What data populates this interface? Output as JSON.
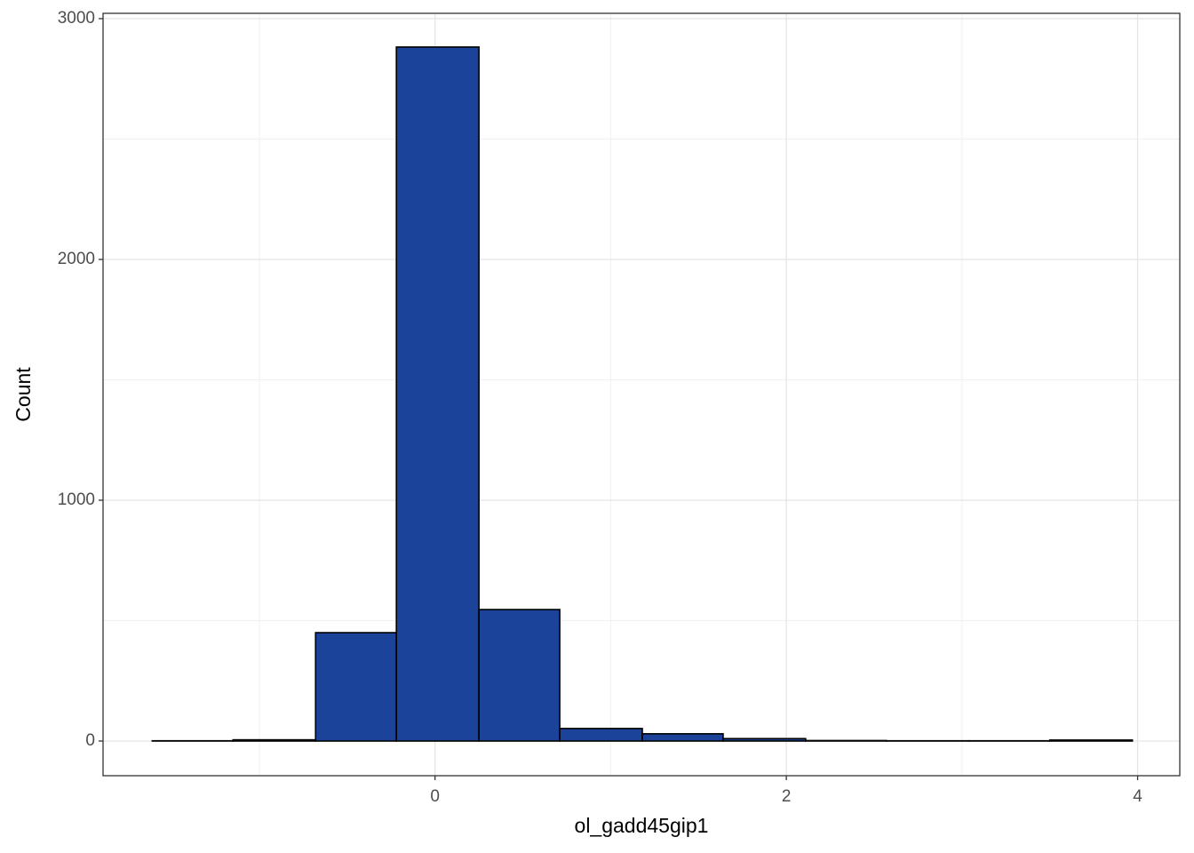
{
  "chart_data": {
    "type": "histogram",
    "x_label": "ol_gadd45gip1",
    "y_label": "Count",
    "bins": [
      -1.61,
      -1.15,
      -0.68,
      -0.22,
      0.25,
      0.71,
      1.18,
      1.64,
      2.11,
      2.57,
      3.04,
      3.5,
      3.97
    ],
    "counts": [
      1,
      5,
      450,
      2882,
      546,
      52,
      30,
      10,
      2,
      1,
      1,
      4
    ],
    "color": "#1a4399",
    "edge_color": "#000000",
    "xlim": [
      -1.89,
      4.24
    ],
    "xticks": [
      0,
      2,
      4
    ],
    "ylim": [
      -144,
      3022
    ],
    "yticks": [
      0,
      1000,
      2000,
      3000
    ],
    "grid": true
  }
}
